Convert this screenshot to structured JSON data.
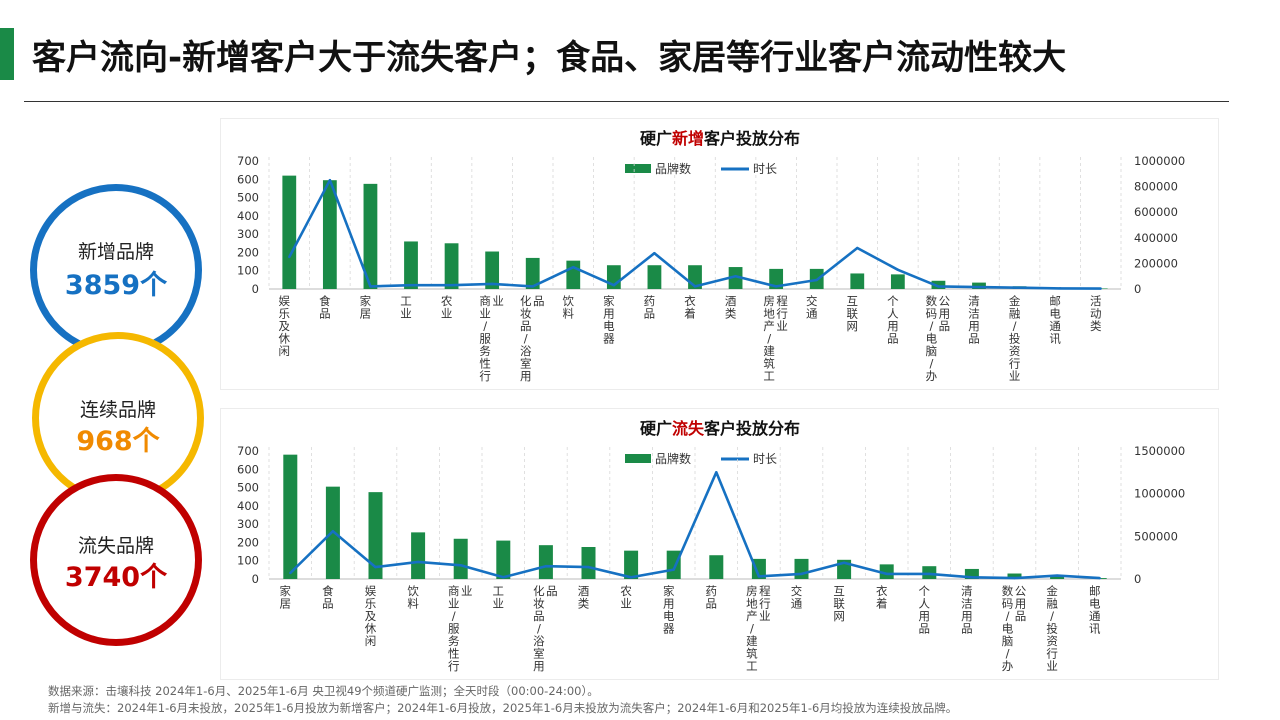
{
  "page": {
    "title": "客户流向-新增客户大于流失客户；食品、家居等行业客户流动性较大",
    "accent_color": "#1a8a47"
  },
  "stats": [
    {
      "label": "新增品牌",
      "value": "3859个",
      "color": "#1671c2"
    },
    {
      "label": "连续品牌",
      "value": "968个",
      "color": "#f08a00",
      "ring_color": "#f5b800"
    },
    {
      "label": "流失品牌",
      "value": "3740个",
      "color": "#c00000"
    }
  ],
  "notes": [
    "数据来源：击壤科技  2024年1-6月、2025年1-6月 央卫视49个频道硬广监测；全天时段（00:00-24:00）。",
    "新增与流失：2024年1-6月未投放，2025年1-6月投放为新增客户；2024年1-6月投放，2025年1-6月未投放为流失客户；2024年1-6月和2025年1-6月均投放为连续投放品牌。"
  ],
  "chart_data": [
    {
      "type": "bar",
      "title_parts": [
        "硬广",
        "新增",
        "客户投放分布"
      ],
      "highlight_color": "#c00000",
      "categories": [
        "娱乐及休闲",
        "食品",
        "家居",
        "工业",
        "农业",
        "商业/服务性行业",
        "化妆品/浴室用品",
        "饮料",
        "家用电器",
        "药品",
        "衣着",
        "酒类",
        "房地产/建筑工程行业",
        "交通",
        "互联网",
        "个人用品",
        "数码/电脑/办公用品",
        "清洁用品",
        "金融/投资行业",
        "邮电通讯",
        "活动类"
      ],
      "series": [
        {
          "name": "品牌数",
          "axis": "left",
          "type": "bar",
          "color": "#1a8a47",
          "values": [
            620,
            595,
            575,
            260,
            250,
            205,
            170,
            155,
            130,
            130,
            130,
            120,
            110,
            110,
            85,
            80,
            45,
            35,
            15,
            5,
            3
          ]
        },
        {
          "name": "时长",
          "axis": "right",
          "type": "line",
          "color": "#1671c2",
          "values": [
            250000,
            850000,
            20000,
            30000,
            30000,
            40000,
            20000,
            170000,
            30000,
            280000,
            20000,
            100000,
            20000,
            70000,
            320000,
            150000,
            20000,
            15000,
            10000,
            5000,
            3000
          ]
        }
      ],
      "ylim_left": [
        0,
        700
      ],
      "yticks_left": [
        0,
        100,
        200,
        300,
        400,
        500,
        600,
        700
      ],
      "ylim_right": [
        0,
        1000000
      ],
      "yticks_right": [
        0,
        200000,
        400000,
        600000,
        800000,
        1000000
      ],
      "legend": "top-center",
      "grid": "vertical-dashed"
    },
    {
      "type": "bar",
      "title_parts": [
        "硬广",
        "流失",
        "客户投放分布"
      ],
      "highlight_color": "#c00000",
      "categories": [
        "家居",
        "食品",
        "娱乐及休闲",
        "饮料",
        "商业/服务性行业",
        "工业",
        "化妆品/浴室用品",
        "酒类",
        "农业",
        "家用电器",
        "药品",
        "房地产/建筑工程行业",
        "交通",
        "互联网",
        "衣着",
        "个人用品",
        "清洁用品",
        "数码/电脑/办公用品",
        "金融/投资行业",
        "邮电通讯"
      ],
      "series": [
        {
          "name": "品牌数",
          "axis": "left",
          "type": "bar",
          "color": "#1a8a47",
          "values": [
            680,
            505,
            475,
            255,
            220,
            210,
            185,
            175,
            155,
            155,
            130,
            110,
            110,
            105,
            80,
            70,
            55,
            30,
            15,
            5
          ]
        },
        {
          "name": "时长",
          "axis": "right",
          "type": "line",
          "color": "#1671c2",
          "values": [
            70000,
            560000,
            140000,
            200000,
            160000,
            20000,
            150000,
            140000,
            20000,
            110000,
            1250000,
            30000,
            60000,
            190000,
            60000,
            60000,
            20000,
            10000,
            40000,
            10000
          ]
        }
      ],
      "ylim_left": [
        0,
        700
      ],
      "yticks_left": [
        0,
        100,
        200,
        300,
        400,
        500,
        600,
        700
      ],
      "ylim_right": [
        0,
        1500000
      ],
      "yticks_right": [
        0,
        500000,
        1000000,
        1500000
      ],
      "legend": "top-center",
      "grid": "vertical-dashed"
    }
  ]
}
